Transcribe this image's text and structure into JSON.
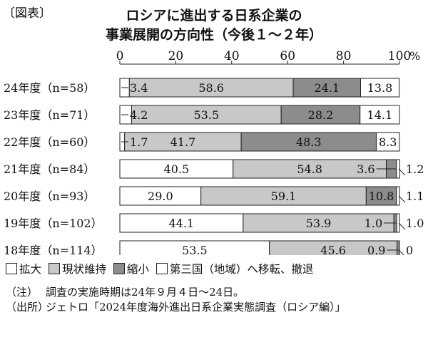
{
  "figure_label": "〔図表〕",
  "chart_data": {
    "type": "bar",
    "orientation": "horizontal",
    "stacked": true,
    "title": "ロシアに進出する日系企業の事業展開の方向性（今後１～２年）",
    "title_lines": [
      "ロシアに進出する日系企業の",
      "事業展開の方向性（今後１～２年）"
    ],
    "xlim": [
      0,
      100
    ],
    "x_ticks": [
      "0",
      "20",
      "40",
      "60",
      "80",
      "100"
    ],
    "x_unit": "%",
    "categories": [
      "24年度（n=58）",
      "23年度（n=71）",
      "22年度（n=60）",
      "21年度（n=84）",
      "20年度（n=93）",
      "19年度（n=102）",
      "18年度（n=114）"
    ],
    "series": [
      {
        "name": "拡大",
        "color": "#ffffff",
        "values": [
          3.4,
          4.2,
          1.7,
          40.5,
          29.0,
          44.1,
          53.5
        ],
        "labels": [
          "3.4",
          "4.2",
          "1.7",
          "40.5",
          "29.0",
          "44.1",
          "53.5"
        ]
      },
      {
        "name": "現状維持",
        "color": "#c8c8c8",
        "values": [
          58.6,
          53.5,
          41.7,
          54.8,
          59.1,
          53.9,
          45.6
        ],
        "labels": [
          "58.6",
          "53.5",
          "41.7",
          "54.8",
          "59.1",
          "53.9",
          "45.6"
        ]
      },
      {
        "name": "縮小",
        "color": "#8c8c8c",
        "values": [
          24.1,
          28.2,
          48.3,
          3.6,
          10.8,
          1.0,
          0.9
        ],
        "labels": [
          "24.1",
          "28.2",
          "48.3",
          "3.6",
          "10.8",
          "1.0",
          "0.9"
        ]
      },
      {
        "name": "第三国（地域）へ移転、撤退",
        "color": "#ffffff",
        "values": [
          13.8,
          14.1,
          8.3,
          1.2,
          1.1,
          1.0,
          0
        ],
        "labels": [
          "13.8",
          "14.1",
          "8.3",
          "1.2",
          "1.1",
          "1.0",
          "0"
        ]
      }
    ],
    "legend_position": "bottom"
  },
  "notes": [
    {
      "tag": "（注）",
      "text": "調査の実施時期は24年９月４日～24日。"
    },
    {
      "tag": "（出所）",
      "text": "ジェトロ「2024年度海外進出日系企業実態調査（ロシア編）」"
    }
  ]
}
